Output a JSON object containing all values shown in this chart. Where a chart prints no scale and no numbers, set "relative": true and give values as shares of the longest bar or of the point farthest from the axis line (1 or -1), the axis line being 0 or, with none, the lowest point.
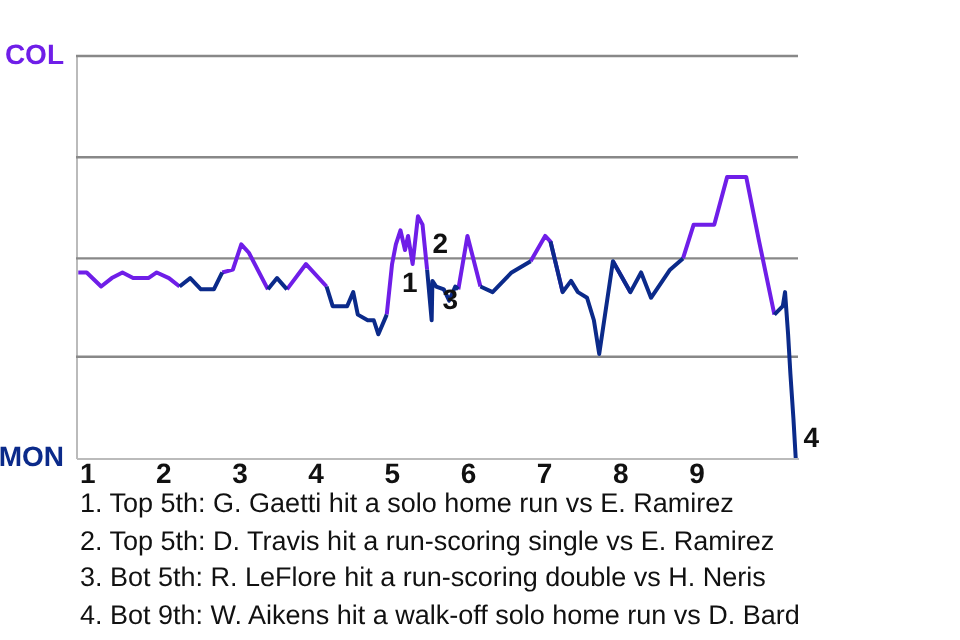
{
  "chart_data": {
    "type": "line",
    "relative": true,
    "x": [
      0.89,
      1.0,
      1.19,
      1.33,
      1.47,
      1.61,
      1.81,
      1.92,
      2.08,
      2.22,
      2.36,
      2.5,
      2.67,
      2.78,
      2.92,
      3.03,
      3.13,
      3.38,
      3.5,
      3.63,
      3.88,
      4.15,
      4.23,
      4.42,
      4.5,
      4.56,
      4.69,
      4.77,
      4.83,
      4.94,
      5.01,
      5.06,
      5.12,
      5.18,
      5.22,
      5.28,
      5.35,
      5.41,
      5.47,
      5.53,
      5.54,
      5.59,
      5.69,
      5.76,
      5.84,
      5.88,
      6.0,
      6.17,
      6.33,
      6.58,
      6.83,
      7.02,
      7.09,
      7.25,
      7.36,
      7.45,
      7.57,
      7.66,
      7.73,
      7.91,
      8.14,
      8.28,
      8.41,
      8.66,
      8.83,
      8.97,
      9.24,
      9.41,
      9.66,
      9.83,
      10.03,
      10.14,
      10.17,
      10.21,
      10.24,
      10.28,
      10.31
    ],
    "xlim": [
      0.86,
      10.34
    ],
    "xticks": [
      1,
      2,
      3,
      4,
      5,
      6,
      7,
      8,
      9
    ],
    "series": [
      {
        "color": "#6f1ee8",
        "values": [
          0.66,
          0.66,
          0.61,
          0.64,
          0.66,
          0.64,
          0.64,
          0.66,
          0.64,
          0.61,
          null,
          null,
          null,
          0.66,
          0.67,
          0.76,
          0.73,
          0.6,
          null,
          0.6,
          0.69,
          0.61,
          null,
          null,
          null,
          null,
          null,
          null,
          null,
          0.51,
          0.69,
          0.76,
          0.81,
          0.74,
          0.79,
          0.69,
          0.86,
          0.83,
          0.67,
          null,
          null,
          null,
          null,
          null,
          null,
          0.6,
          0.79,
          0.61,
          null,
          null,
          0.7,
          0.79,
          0.77,
          0.59,
          null,
          null,
          null,
          null,
          null,
          0.7,
          0.59,
          null,
          null,
          null,
          0.71,
          0.83,
          0.83,
          1,
          1,
          0.77,
          0.51,
          null,
          null,
          null,
          null,
          null,
          null
        ]
      },
      {
        "color": "#0b2a8a",
        "values": [
          null,
          null,
          null,
          null,
          null,
          null,
          null,
          null,
          null,
          0.61,
          0.64,
          0.6,
          0.6,
          0.66,
          null,
          null,
          null,
          0.6,
          0.64,
          0.6,
          null,
          0.61,
          0.54,
          0.54,
          0.59,
          0.51,
          0.49,
          0.49,
          0.44,
          0.51,
          null,
          null,
          null,
          null,
          null,
          null,
          null,
          null,
          0.67,
          0.49,
          0.63,
          0.61,
          0.6,
          0.56,
          0.61,
          0.6,
          null,
          0.61,
          0.59,
          0.66,
          0.7,
          null,
          0.77,
          0.59,
          0.63,
          0.59,
          0.57,
          0.49,
          0.37,
          0.7,
          0.59,
          0.66,
          0.57,
          0.67,
          0.71,
          null,
          null,
          null,
          null,
          null,
          0.51,
          0.54,
          0.59,
          0.44,
          0.3,
          0.14,
          0
        ]
      }
    ],
    "ref_lines": [
      {
        "axis": "y",
        "value": 0.36,
        "color": "#888888"
      },
      {
        "axis": "y",
        "value": 0.71,
        "color": "#888888"
      },
      {
        "axis": "y",
        "value": 1.07,
        "color": "#888888"
      },
      {
        "axis": "y",
        "value": 1.43,
        "color": "#888888"
      }
    ],
    "annotations": [
      "COL",
      "MON",
      {
        "text": "1",
        "x": 5.01,
        "y": 0.69
      },
      {
        "text": "2",
        "x": 5.41,
        "y": 0.83
      },
      {
        "text": "3",
        "x": 5.54,
        "y": 0.63
      },
      {
        "text": "4",
        "x": 10.28,
        "y": 0.14
      },
      "1. Top 5th: G. Gaetti hit a solo home run vs E. Ramirez",
      "2. Top 5th: D. Travis hit a run-scoring single vs E. Ramirez",
      "3. Bot 5th: R. LeFlore hit a run-scoring double vs H. Neris",
      "4. Bot 9th: W. Aikens hit a walk-off solo home run vs D. Bard"
    ]
  }
}
